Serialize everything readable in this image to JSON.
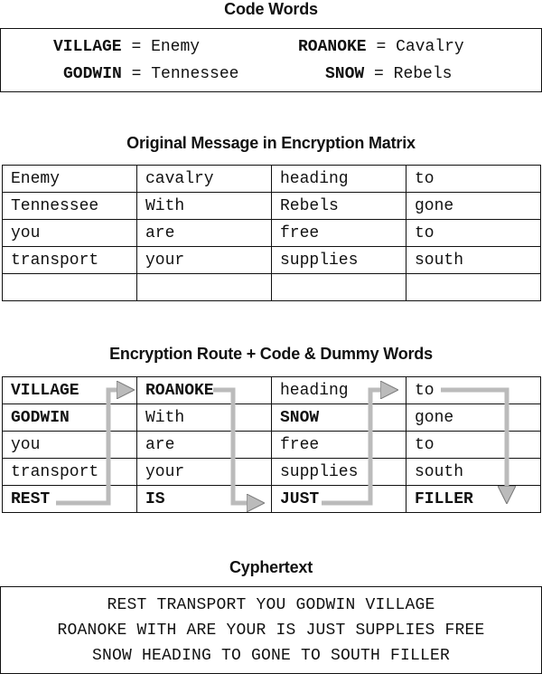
{
  "code_words": {
    "title": "Code Words",
    "entries": [
      {
        "code": "VILLAGE",
        "eq": "=",
        "meaning": "Enemy"
      },
      {
        "code": "ROANOKE",
        "eq": "=",
        "meaning": "Cavalry"
      },
      {
        "code": "GODWIN",
        "eq": "=",
        "meaning": "Tennessee"
      },
      {
        "code": "SNOW",
        "eq": "=",
        "meaning": "Rebels"
      }
    ]
  },
  "original_matrix": {
    "title": "Original Message in Encryption Matrix",
    "rows": [
      [
        "Enemy",
        "cavalry",
        "heading",
        "to"
      ],
      [
        "Tennessee",
        "With",
        "Rebels",
        "gone"
      ],
      [
        "you",
        "are",
        "free",
        "to"
      ],
      [
        "transport",
        "your",
        "supplies",
        "south"
      ],
      [
        "",
        "",
        "",
        ""
      ]
    ]
  },
  "route_matrix": {
    "title": "Encryption Route + Code & Dummy Words",
    "rows": [
      [
        "VILLAGE",
        "ROANOKE",
        "heading",
        "to"
      ],
      [
        "GODWIN",
        "With",
        "SNOW",
        "gone"
      ],
      [
        "you",
        "are",
        "free",
        "to"
      ],
      [
        "transport",
        "your",
        "supplies",
        "south"
      ],
      [
        "REST",
        "IS",
        "JUST",
        "FILLER"
      ]
    ],
    "arrow_color": "#bbbbbb"
  },
  "cyphertext": {
    "title": "Cyphertext",
    "lines": [
      "REST TRANSPORT YOU GODWIN VILLAGE",
      "ROANOKE WITH ARE YOUR IS JUST SUPPLIES FREE",
      "SNOW HEADING TO GONE TO SOUTH FILLER"
    ]
  }
}
